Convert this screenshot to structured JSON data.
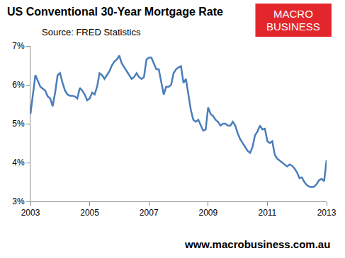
{
  "chart_data": {
    "type": "line",
    "title": "US Conventional 30-Year Mortgage Rate",
    "subtitle": "Source: FRED Statistics",
    "annotations": [
      "MACRO",
      "BUSINESS",
      "www.macrobusiness.com.au"
    ],
    "color": "#4a7ebb",
    "grid": false,
    "xlim": [
      2003,
      2013
    ],
    "xticks": [
      2003,
      2005,
      2007,
      2009,
      2011,
      2013
    ],
    "ylim": [
      3,
      7
    ],
    "yticks": [
      {
        "value": 3,
        "label": "3%"
      },
      {
        "value": 4,
        "label": "4%"
      },
      {
        "value": 5,
        "label": "5%"
      },
      {
        "value": 6,
        "label": "6%"
      },
      {
        "value": 7,
        "label": "7%"
      }
    ],
    "x": [
      2003,
      2003.083,
      2003.167,
      2003.25,
      2003.333,
      2003.417,
      2003.5,
      2003.583,
      2003.667,
      2003.75,
      2003.833,
      2003.917,
      2004,
      2004.083,
      2004.167,
      2004.25,
      2004.333,
      2004.417,
      2004.5,
      2004.583,
      2004.667,
      2004.75,
      2004.833,
      2004.917,
      2005,
      2005.083,
      2005.167,
      2005.25,
      2005.333,
      2005.417,
      2005.5,
      2005.583,
      2005.667,
      2005.75,
      2005.833,
      2005.917,
      2006,
      2006.083,
      2006.167,
      2006.25,
      2006.333,
      2006.417,
      2006.5,
      2006.583,
      2006.667,
      2006.75,
      2006.833,
      2006.917,
      2007,
      2007.083,
      2007.167,
      2007.25,
      2007.333,
      2007.417,
      2007.5,
      2007.583,
      2007.667,
      2007.75,
      2007.833,
      2007.917,
      2008,
      2008.083,
      2008.167,
      2008.25,
      2008.333,
      2008.417,
      2008.5,
      2008.583,
      2008.667,
      2008.75,
      2008.833,
      2008.917,
      2009,
      2009.083,
      2009.167,
      2009.25,
      2009.333,
      2009.417,
      2009.5,
      2009.583,
      2009.667,
      2009.75,
      2009.833,
      2009.917,
      2010,
      2010.083,
      2010.167,
      2010.25,
      2010.333,
      2010.417,
      2010.5,
      2010.583,
      2010.667,
      2010.75,
      2010.833,
      2010.917,
      2011,
      2011.083,
      2011.167,
      2011.25,
      2011.333,
      2011.417,
      2011.5,
      2011.583,
      2011.667,
      2011.75,
      2011.833,
      2011.917,
      2012,
      2012.083,
      2012.167,
      2012.25,
      2012.333,
      2012.417,
      2012.5,
      2012.583,
      2012.667,
      2012.75,
      2012.833,
      2012.917,
      2013
    ],
    "values": [
      5.25,
      5.7,
      6.25,
      6.1,
      5.95,
      5.9,
      5.85,
      5.7,
      5.65,
      5.45,
      5.8,
      6.25,
      6.3,
      6.05,
      5.85,
      5.75,
      5.72,
      5.72,
      5.7,
      5.65,
      5.92,
      5.85,
      5.75,
      5.6,
      5.65,
      5.8,
      5.75,
      5.95,
      6.3,
      6.25,
      6.15,
      6.25,
      6.35,
      6.5,
      6.6,
      6.65,
      6.75,
      6.55,
      6.45,
      6.35,
      6.25,
      6.15,
      6.2,
      6.3,
      6.2,
      6.15,
      6.2,
      6.65,
      6.7,
      6.7,
      6.55,
      6.4,
      6.4,
      6.1,
      5.75,
      5.95,
      5.95,
      6.0,
      6.3,
      6.4,
      6.45,
      6.48,
      6.05,
      6.15,
      5.75,
      5.35,
      5.1,
      5.05,
      5.1,
      4.95,
      4.82,
      4.85,
      5.42,
      5.25,
      5.2,
      5.1,
      5.05,
      4.95,
      5.0,
      5.0,
      4.95,
      4.95,
      5.05,
      4.95,
      4.75,
      4.6,
      4.5,
      4.4,
      4.3,
      4.25,
      4.4,
      4.7,
      4.8,
      4.95,
      4.85,
      4.87,
      4.55,
      4.5,
      4.55,
      4.2,
      4.1,
      4.05,
      4.0,
      3.95,
      3.9,
      3.95,
      3.92,
      3.85,
      3.75,
      3.6,
      3.62,
      3.5,
      3.42,
      3.38,
      3.37,
      3.38,
      3.45,
      3.55,
      3.58,
      3.52,
      4.07
    ]
  }
}
